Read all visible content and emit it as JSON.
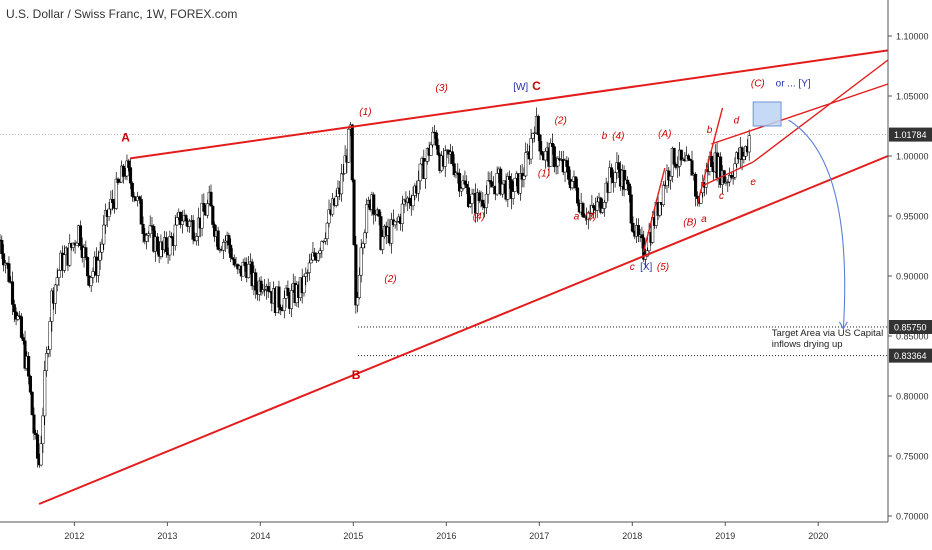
{
  "chart_data": {
    "type": "candlestick",
    "title": "U.S. Dollar / Swiss Franc, 1W, FOREX.com",
    "ylim": [
      0.695,
      1.13
    ],
    "xlim": [
      2011.2,
      2020.75
    ],
    "y_ticks": [
      "1.10000",
      "1.05000",
      "1.00000",
      "0.95000",
      "0.90000",
      "0.85000",
      "0.80000",
      "0.75000",
      "0.70000"
    ],
    "y_tick_values": [
      1.1,
      1.05,
      1.0,
      0.95,
      0.9,
      0.85,
      0.8,
      0.75,
      0.7
    ],
    "x_ticks": [
      "2012",
      "2013",
      "2014",
      "2015",
      "2016",
      "2017",
      "2018",
      "2019",
      "2020"
    ],
    "x_tick_values": [
      2012,
      2013,
      2014,
      2015,
      2016,
      2017,
      2018,
      2019,
      2020
    ],
    "price_badges": [
      {
        "label": "1.01784",
        "value": 1.01784,
        "color": "#333333"
      },
      {
        "label": "0.85750",
        "value": 0.8575,
        "color": "#333333"
      },
      {
        "label": "0.83364",
        "value": 0.83364,
        "color": "#333333"
      }
    ],
    "price_path": [
      [
        2011.2,
        0.93
      ],
      [
        2011.3,
        0.9
      ],
      [
        2011.4,
        0.86
      ],
      [
        2011.5,
        0.82
      ],
      [
        2011.58,
        0.76
      ],
      [
        2011.62,
        0.74
      ],
      [
        2011.68,
        0.81
      ],
      [
        2011.75,
        0.88
      ],
      [
        2011.85,
        0.91
      ],
      [
        2011.95,
        0.92
      ],
      [
        2012.05,
        0.94
      ],
      [
        2012.15,
        0.9
      ],
      [
        2012.25,
        0.91
      ],
      [
        2012.35,
        0.95
      ],
      [
        2012.45,
        0.97
      ],
      [
        2012.55,
        0.99
      ],
      [
        2012.65,
        0.97
      ],
      [
        2012.75,
        0.94
      ],
      [
        2012.85,
        0.93
      ],
      [
        2012.95,
        0.92
      ],
      [
        2013.05,
        0.93
      ],
      [
        2013.15,
        0.95
      ],
      [
        2013.3,
        0.94
      ],
      [
        2013.45,
        0.96
      ],
      [
        2013.55,
        0.93
      ],
      [
        2013.65,
        0.93
      ],
      [
        2013.75,
        0.9
      ],
      [
        2013.85,
        0.91
      ],
      [
        2013.95,
        0.89
      ],
      [
        2014.05,
        0.9
      ],
      [
        2014.15,
        0.88
      ],
      [
        2014.3,
        0.88
      ],
      [
        2014.45,
        0.89
      ],
      [
        2014.55,
        0.91
      ],
      [
        2014.7,
        0.94
      ],
      [
        2014.85,
        0.97
      ],
      [
        2014.97,
        1.02
      ],
      [
        2015.03,
        0.86
      ],
      [
        2015.08,
        0.93
      ],
      [
        2015.2,
        0.97
      ],
      [
        2015.3,
        0.93
      ],
      [
        2015.45,
        0.94
      ],
      [
        2015.55,
        0.96
      ],
      [
        2015.65,
        0.97
      ],
      [
        2015.75,
        0.99
      ],
      [
        2015.88,
        1.02
      ],
      [
        2015.95,
        0.99
      ],
      [
        2016.05,
        1.0
      ],
      [
        2016.15,
        0.98
      ],
      [
        2016.3,
        0.96
      ],
      [
        2016.45,
        0.97
      ],
      [
        2016.55,
        0.98
      ],
      [
        2016.7,
        0.97
      ],
      [
        2016.8,
        0.98
      ],
      [
        2016.88,
        1.0
      ],
      [
        2016.95,
        1.03
      ],
      [
        2017.05,
        1.0
      ],
      [
        2017.15,
        1.0
      ],
      [
        2017.25,
        0.99
      ],
      [
        2017.35,
        0.98
      ],
      [
        2017.45,
        0.96
      ],
      [
        2017.55,
        0.95
      ],
      [
        2017.65,
        0.96
      ],
      [
        2017.75,
        0.98
      ],
      [
        2017.85,
        0.99
      ],
      [
        2017.95,
        0.97
      ],
      [
        2018.05,
        0.93
      ],
      [
        2018.12,
        0.92
      ],
      [
        2018.25,
        0.95
      ],
      [
        2018.35,
        0.98
      ],
      [
        2018.45,
        1.0
      ],
      [
        2018.55,
        0.99
      ],
      [
        2018.65,
        0.99
      ],
      [
        2018.7,
        0.96
      ],
      [
        2018.78,
        0.98
      ],
      [
        2018.85,
        1.0
      ],
      [
        2018.93,
        0.99
      ],
      [
        2019.0,
        0.98
      ],
      [
        2019.08,
        0.99
      ],
      [
        2019.15,
        1.0
      ],
      [
        2019.2,
        1.0
      ],
      [
        2019.27,
        1.02
      ]
    ],
    "trend_lines": [
      {
        "name": "upper-wedge-line",
        "x": [
          2012.6,
          2020.75
        ],
        "y": [
          0.998,
          1.088
        ]
      },
      {
        "name": "lower-wedge-line",
        "x": [
          2011.62,
          2020.75
        ],
        "y": [
          0.71,
          1.0
        ]
      },
      {
        "name": "wave-a-line",
        "x": [
          2018.12,
          2018.35
        ],
        "y": [
          0.92,
          0.99
        ]
      },
      {
        "name": "wave-b-line",
        "x": [
          2018.7,
          2018.97
        ],
        "y": [
          0.96,
          1.04
        ]
      },
      {
        "name": "inner-upper-line",
        "x": [
          2018.85,
          2020.75
        ],
        "y": [
          1.01,
          1.06
        ]
      },
      {
        "name": "inner-lower-line",
        "x": [
          2018.75,
          2019.3
        ],
        "y": [
          0.975,
          0.995
        ]
      },
      {
        "name": "steep-line",
        "x": [
          2019.3,
          2020.75
        ],
        "y": [
          0.995,
          1.08
        ]
      }
    ],
    "horizontal_levels": [
      {
        "x_from": 2015.05,
        "value": 0.8575
      },
      {
        "x_from": 2015.05,
        "value": 0.83364
      }
    ],
    "target_box": {
      "x": [
        2019.3,
        2019.6
      ],
      "y": [
        1.025,
        1.045
      ]
    },
    "arrow": {
      "from": [
        2019.68,
        1.03
      ],
      "to": [
        2020.27,
        0.856
      ]
    },
    "wave_labels": [
      {
        "text": "A",
        "x": 2012.55,
        "y": 1.012,
        "color": "#cc0000",
        "bold": true,
        "italic": false
      },
      {
        "text": "B",
        "x": 2015.03,
        "y": 0.814,
        "color": "#cc0000",
        "bold": true,
        "italic": false
      },
      {
        "text": "(1)",
        "x": 2015.13,
        "y": 1.034,
        "color": "#cc0000",
        "bold": false,
        "italic": true
      },
      {
        "text": "(2)",
        "x": 2015.4,
        "y": 0.895,
        "color": "#cc0000",
        "bold": false,
        "italic": true
      },
      {
        "text": "(3)",
        "x": 2015.95,
        "y": 1.054,
        "color": "#cc0000",
        "bold": false,
        "italic": true
      },
      {
        "text": "(4)",
        "x": 2016.35,
        "y": 0.947,
        "color": "#cc0000",
        "bold": false,
        "italic": true
      },
      {
        "text": "[W]",
        "x": 2016.8,
        "y": 1.055,
        "color": "#2233aa",
        "bold": false,
        "italic": false
      },
      {
        "text": "C",
        "x": 2016.97,
        "y": 1.055,
        "color": "#cc0000",
        "bold": true,
        "italic": false
      },
      {
        "text": "(2)",
        "x": 2017.23,
        "y": 1.027,
        "color": "#cc0000",
        "bold": false,
        "italic": true
      },
      {
        "text": "(1)",
        "x": 2017.05,
        "y": 0.983,
        "color": "#cc0000",
        "bold": false,
        "italic": true
      },
      {
        "text": "b",
        "x": 2017.7,
        "y": 1.014,
        "color": "#cc0000",
        "bold": false,
        "italic": true
      },
      {
        "text": "(4)",
        "x": 2017.85,
        "y": 1.014,
        "color": "#cc0000",
        "bold": false,
        "italic": true
      },
      {
        "text": "a",
        "x": 2017.4,
        "y": 0.947,
        "color": "#cc0000",
        "bold": false,
        "italic": true
      },
      {
        "text": "(3)",
        "x": 2017.55,
        "y": 0.947,
        "color": "#cc0000",
        "bold": false,
        "italic": true
      },
      {
        "text": "(A)",
        "x": 2018.35,
        "y": 1.016,
        "color": "#cc0000",
        "bold": false,
        "italic": true
      },
      {
        "text": "(B)",
        "x": 2018.62,
        "y": 0.942,
        "color": "#cc0000",
        "bold": false,
        "italic": true
      },
      {
        "text": "a",
        "x": 2018.77,
        "y": 0.945,
        "color": "#cc0000",
        "bold": false,
        "italic": true
      },
      {
        "text": "b",
        "x": 2018.83,
        "y": 1.019,
        "color": "#cc0000",
        "bold": false,
        "italic": true
      },
      {
        "text": "c",
        "x": 2018.96,
        "y": 0.964,
        "color": "#cc0000",
        "bold": false,
        "italic": true
      },
      {
        "text": "d",
        "x": 2019.12,
        "y": 1.027,
        "color": "#cc0000",
        "bold": false,
        "italic": true
      },
      {
        "text": "e",
        "x": 2019.3,
        "y": 0.976,
        "color": "#cc0000",
        "bold": false,
        "italic": true
      },
      {
        "text": "c",
        "x": 2018.0,
        "y": 0.905,
        "color": "#cc0000",
        "bold": false,
        "italic": true
      },
      {
        "text": "[X]",
        "x": 2018.15,
        "y": 0.905,
        "color": "#2233aa",
        "bold": false,
        "italic": false
      },
      {
        "text": "(5)",
        "x": 2018.33,
        "y": 0.905,
        "color": "#cc0000",
        "bold": false,
        "italic": true
      },
      {
        "text": "(C)",
        "x": 2019.35,
        "y": 1.058,
        "color": "#cc0000",
        "bold": false,
        "italic": true
      },
      {
        "text": "or ... [Y]",
        "x": 2019.73,
        "y": 1.058,
        "color": "#2233aa",
        "bold": false,
        "italic": false
      }
    ],
    "annotation": {
      "lines": [
        "Target Area via US Capital",
        "inflows drying up"
      ],
      "x": 2019.5,
      "y": 0.85
    }
  }
}
